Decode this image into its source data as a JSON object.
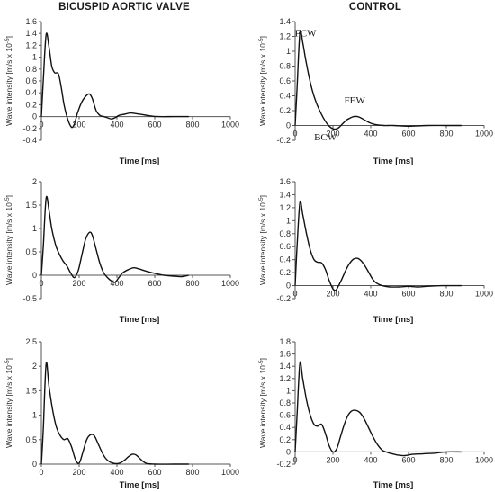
{
  "titles": {
    "left": "BICUSPID AORTIC VALVE",
    "right": "CONTROL"
  },
  "chart_data": [
    {
      "type": "line",
      "id": "bav-1",
      "xlabel": "Time [ms]",
      "ylabel": "Wave intensity [m/s x 10",
      "xlim": [
        0,
        1000
      ],
      "ylim": [
        -0.4,
        1.6
      ],
      "xticks": [
        0,
        200,
        400,
        600,
        800,
        1000
      ],
      "yticks": [
        -0.4,
        -0.2,
        0,
        0.2,
        0.4,
        0.6,
        0.8,
        1,
        1.2,
        1.4,
        1.6
      ],
      "ytick_labels": [
        "-0.4",
        "-0.2",
        "0",
        "0.2",
        "0.4",
        "0.6",
        "0.8",
        "1",
        "1.2",
        "1.4",
        "1.6"
      ],
      "series": [
        {
          "x": [
            0,
            10,
            25,
            40,
            55,
            70,
            90,
            105,
            120,
            140,
            160,
            175,
            190,
            205,
            220,
            240,
            255,
            270,
            290,
            310,
            330,
            350,
            370,
            390,
            410,
            440,
            470,
            500,
            540,
            580,
            620,
            700,
            780
          ],
          "y": [
            0,
            0.6,
            1.38,
            1.18,
            0.85,
            0.74,
            0.72,
            0.5,
            0.2,
            -0.05,
            -0.18,
            -0.12,
            0.05,
            0.18,
            0.28,
            0.36,
            0.38,
            0.3,
            0.1,
            0.02,
            0.0,
            -0.02,
            -0.04,
            -0.02,
            0.02,
            0.04,
            0.06,
            0.05,
            0.03,
            0.01,
            0.0,
            0.0,
            0.0
          ]
        }
      ]
    },
    {
      "type": "line",
      "id": "ctrl-1",
      "xlabel": "Time [ms]",
      "ylabel": "Wave intensity [m/s x 10",
      "xlim": [
        0,
        1000
      ],
      "ylim": [
        -0.2,
        1.4
      ],
      "xticks": [
        0,
        200,
        400,
        600,
        800,
        1000
      ],
      "yticks": [
        -0.2,
        0,
        0.2,
        0.4,
        0.6,
        0.8,
        1,
        1.2,
        1.4
      ],
      "ytick_labels": [
        "-0.2",
        "0",
        "0.2",
        "0.4",
        "0.6",
        "0.8",
        "1",
        "1.2",
        "1.4"
      ],
      "annotations": [
        {
          "text": "FCW",
          "x": 55,
          "y": 1.2
        },
        {
          "text": "BCW",
          "x": 160,
          "y": -0.2
        },
        {
          "text": "FEW",
          "x": 315,
          "y": 0.3
        }
      ],
      "series": [
        {
          "x": [
            0,
            10,
            25,
            40,
            55,
            70,
            90,
            110,
            130,
            150,
            170,
            190,
            210,
            230,
            250,
            270,
            290,
            310,
            330,
            350,
            370,
            400,
            430,
            470,
            520,
            600,
            700,
            800,
            880
          ],
          "y": [
            0,
            0.5,
            1.25,
            1.12,
            0.9,
            0.7,
            0.48,
            0.32,
            0.2,
            0.1,
            0.02,
            -0.03,
            -0.05,
            -0.03,
            0.02,
            0.07,
            0.1,
            0.12,
            0.12,
            0.1,
            0.07,
            0.03,
            0.01,
            0.0,
            0.0,
            -0.01,
            0.0,
            0.0,
            0.0
          ]
        }
      ]
    },
    {
      "type": "line",
      "id": "bav-2",
      "xlabel": "Time [ms]",
      "ylabel": "Wave intensity [m/s x 10",
      "xlim": [
        0,
        1000
      ],
      "ylim": [
        -0.5,
        2
      ],
      "xticks": [
        0,
        200,
        400,
        600,
        800,
        1000
      ],
      "yticks": [
        -0.5,
        0,
        0.5,
        1,
        1.5,
        2
      ],
      "ytick_labels": [
        "-0.5",
        "0",
        "0.5",
        "1",
        "1.5",
        "2"
      ],
      "series": [
        {
          "x": [
            0,
            10,
            25,
            40,
            55,
            75,
            95,
            115,
            135,
            155,
            175,
            195,
            215,
            235,
            255,
            270,
            290,
            310,
            330,
            350,
            370,
            390,
            410,
            430,
            460,
            490,
            520,
            560,
            600,
            650,
            700,
            740,
            780
          ],
          "y": [
            0,
            0.6,
            1.65,
            1.4,
            1.0,
            0.65,
            0.45,
            0.3,
            0.2,
            0.05,
            -0.05,
            0.1,
            0.45,
            0.78,
            0.92,
            0.85,
            0.55,
            0.25,
            0.05,
            -0.05,
            -0.12,
            -0.15,
            -0.05,
            0.05,
            0.12,
            0.16,
            0.13,
            0.08,
            0.04,
            0.0,
            -0.02,
            -0.03,
            0.0
          ]
        }
      ]
    },
    {
      "type": "line",
      "id": "ctrl-2",
      "xlabel": "Time [ms]",
      "ylabel": "Wave intensity [m/s x 10",
      "xlim": [
        0,
        1000
      ],
      "ylim": [
        -0.2,
        1.6
      ],
      "xticks": [
        0,
        200,
        400,
        600,
        800,
        1000
      ],
      "yticks": [
        -0.2,
        0,
        0.2,
        0.4,
        0.6,
        0.8,
        1,
        1.2,
        1.4,
        1.6
      ],
      "ytick_labels": [
        "-0.2",
        "0",
        "0.2",
        "0.4",
        "0.6",
        "0.8",
        "1",
        "1.2",
        "1.4",
        "1.6"
      ],
      "series": [
        {
          "x": [
            0,
            10,
            25,
            40,
            60,
            80,
            100,
            120,
            140,
            160,
            180,
            200,
            215,
            230,
            250,
            270,
            290,
            310,
            330,
            350,
            370,
            390,
            410,
            430,
            460,
            500,
            550,
            600,
            650,
            700,
            780,
            880
          ],
          "y": [
            0,
            0.6,
            1.28,
            1.1,
            0.8,
            0.55,
            0.4,
            0.36,
            0.35,
            0.25,
            0.08,
            -0.05,
            -0.07,
            0.0,
            0.12,
            0.25,
            0.35,
            0.41,
            0.42,
            0.38,
            0.3,
            0.2,
            0.1,
            0.04,
            0.0,
            -0.02,
            -0.02,
            -0.01,
            -0.02,
            -0.01,
            0.0,
            0.0
          ]
        }
      ]
    },
    {
      "type": "line",
      "id": "bav-3",
      "xlabel": "Time [ms]",
      "ylabel": "Wave intensity [m/s x 10",
      "xlim": [
        0,
        1000
      ],
      "ylim": [
        0,
        2.5
      ],
      "xticks": [
        0,
        200,
        400,
        600,
        800,
        1000
      ],
      "yticks": [
        0,
        0.5,
        1,
        1.5,
        2,
        2.5
      ],
      "ytick_labels": [
        "0",
        "0.5",
        "1",
        "1.5",
        "2",
        "2.5"
      ],
      "series": [
        {
          "x": [
            0,
            10,
            25,
            40,
            60,
            80,
            100,
            120,
            140,
            160,
            180,
            200,
            220,
            240,
            260,
            280,
            300,
            320,
            340,
            360,
            380,
            400,
            420,
            440,
            460,
            480,
            500,
            520,
            540,
            560,
            600,
            700,
            780
          ],
          "y": [
            0,
            0.7,
            2.05,
            1.6,
            1.1,
            0.75,
            0.58,
            0.5,
            0.52,
            0.35,
            0.1,
            0.02,
            0.25,
            0.5,
            0.6,
            0.58,
            0.42,
            0.25,
            0.12,
            0.05,
            0.02,
            0.01,
            0.03,
            0.08,
            0.15,
            0.2,
            0.19,
            0.12,
            0.05,
            0.01,
            0.0,
            0.0,
            0.0
          ]
        }
      ]
    },
    {
      "type": "line",
      "id": "ctrl-3",
      "xlabel": "Time [ms]",
      "ylabel": "Wave intensity [m/s x 10",
      "xlim": [
        0,
        1000
      ],
      "ylim": [
        -0.2,
        1.8
      ],
      "xticks": [
        0,
        200,
        400,
        600,
        800,
        1000
      ],
      "yticks": [
        -0.2,
        0,
        0.2,
        0.4,
        0.6,
        0.8,
        1,
        1.2,
        1.4,
        1.6,
        1.8
      ],
      "ytick_labels": [
        "-0.2",
        "0",
        "0.2",
        "0.4",
        "0.6",
        "0.8",
        "1",
        "1.2",
        "1.4",
        "1.6",
        "1.8"
      ],
      "series": [
        {
          "x": [
            0,
            10,
            25,
            40,
            60,
            80,
            100,
            120,
            140,
            160,
            180,
            200,
            220,
            240,
            260,
            280,
            300,
            320,
            340,
            360,
            380,
            400,
            420,
            440,
            460,
            480,
            500,
            540,
            580,
            620,
            680,
            740,
            800,
            880
          ],
          "y": [
            0,
            0.6,
            1.45,
            1.2,
            0.85,
            0.6,
            0.45,
            0.42,
            0.45,
            0.3,
            0.1,
            0.0,
            0.05,
            0.25,
            0.45,
            0.6,
            0.67,
            0.68,
            0.65,
            0.57,
            0.45,
            0.32,
            0.2,
            0.1,
            0.03,
            0.0,
            -0.02,
            -0.05,
            -0.06,
            -0.04,
            -0.03,
            -0.02,
            0.0,
            0.0
          ]
        }
      ]
    }
  ]
}
